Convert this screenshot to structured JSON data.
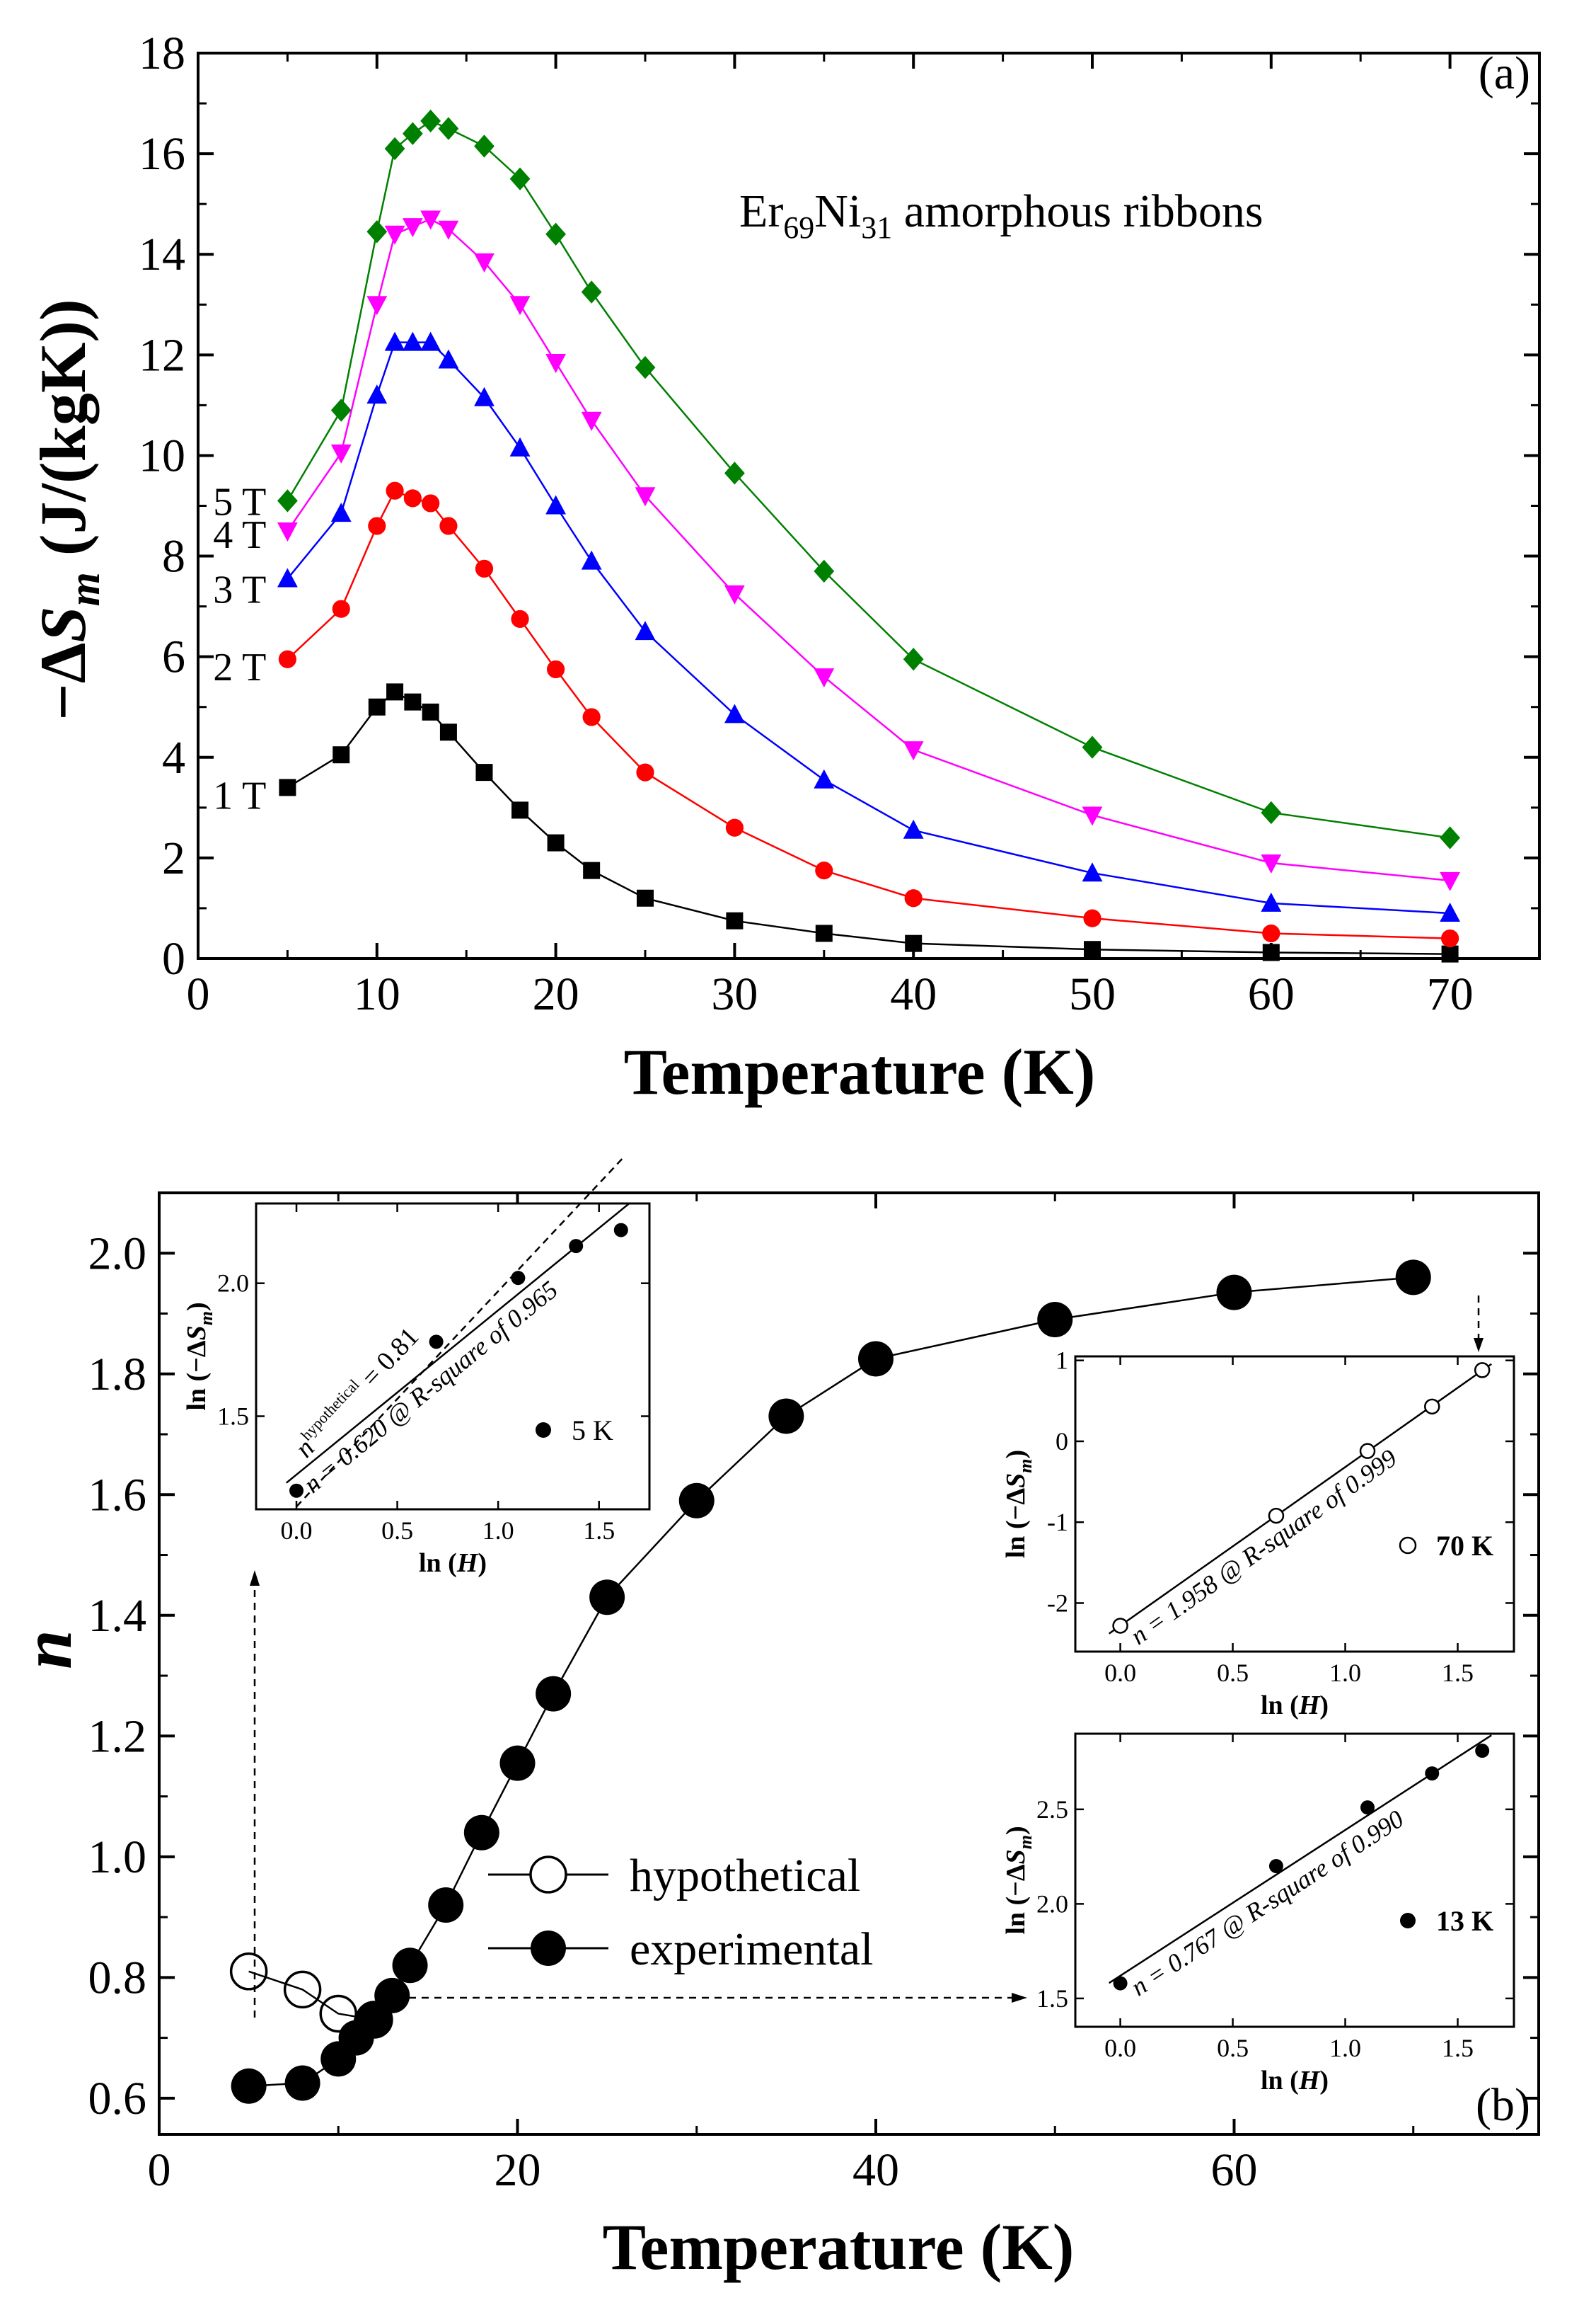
{
  "chart_data": [
    {
      "panel": "(a)",
      "type": "line",
      "title": "Er69Ni31 amorphous ribbons",
      "title_parts": {
        "base1": "Er",
        "sub1": "69",
        "base2": "Ni",
        "sub2": "31",
        "rest": " amorphous ribbons"
      },
      "xlabel": "Temperature (K)",
      "ylabel_parts": {
        "prefix": "−Δ",
        "s": "S",
        "sub": "m",
        "suffix": " (J/(kgK))"
      },
      "xlim": [
        0,
        75
      ],
      "ylim": [
        0,
        18
      ],
      "xticks": [
        "0",
        "10",
        "20",
        "30",
        "40",
        "50",
        "60",
        "70"
      ],
      "yticks": [
        "0",
        "2",
        "4",
        "6",
        "8",
        "10",
        "12",
        "14",
        "16",
        "18"
      ],
      "x": [
        5,
        8,
        10,
        11,
        12,
        13,
        14,
        16,
        18,
        20,
        22,
        25,
        30,
        35,
        40,
        50,
        60,
        70
      ],
      "series": [
        {
          "name": "1 T",
          "marker": "square",
          "color": "#000000",
          "values": [
            3.4,
            4.05,
            5.0,
            5.3,
            5.1,
            4.9,
            4.5,
            3.7,
            2.95,
            2.3,
            1.75,
            1.2,
            0.75,
            0.5,
            0.3,
            0.18,
            0.12,
            0.09
          ]
        },
        {
          "name": "2 T",
          "marker": "circle",
          "color": "#ff0000",
          "values": [
            5.95,
            6.95,
            8.6,
            9.3,
            9.15,
            9.05,
            8.6,
            7.75,
            6.75,
            5.75,
            4.8,
            3.7,
            2.6,
            1.75,
            1.2,
            0.8,
            0.5,
            0.4
          ]
        },
        {
          "name": "3 T",
          "marker": "triangle-up",
          "color": "#0000ff",
          "values": [
            7.55,
            8.85,
            11.2,
            12.25,
            12.25,
            12.25,
            11.9,
            11.15,
            10.15,
            9.0,
            7.9,
            6.5,
            4.85,
            3.55,
            2.55,
            1.7,
            1.1,
            0.9
          ]
        },
        {
          "name": "4 T",
          "marker": "triangle-down",
          "color": "#ff00ff",
          "values": [
            8.5,
            10.05,
            13.0,
            14.4,
            14.55,
            14.7,
            14.5,
            13.85,
            13.0,
            11.85,
            10.7,
            9.2,
            7.25,
            5.6,
            4.15,
            2.85,
            1.9,
            1.55
          ]
        },
        {
          "name": "5 T",
          "marker": "diamond",
          "color": "#008000",
          "values": [
            9.1,
            10.9,
            14.45,
            16.1,
            16.4,
            16.65,
            16.5,
            16.15,
            15.5,
            14.4,
            13.25,
            11.75,
            9.65,
            7.7,
            5.95,
            4.2,
            2.9,
            2.4
          ]
        }
      ]
    },
    {
      "panel": "(b)",
      "type": "scatter",
      "xlabel": "Temperature (K)",
      "ylabel": "n",
      "xlim": [
        0,
        77
      ],
      "ylim": [
        0.54,
        2.1
      ],
      "xticks": [
        "0",
        "20",
        "40",
        "60"
      ],
      "yticks": [
        "0.6",
        "0.8",
        "1.0",
        "1.2",
        "1.4",
        "1.6",
        "1.8",
        "2.0"
      ],
      "series": [
        {
          "name": "hypothetical",
          "marker": "open-circle",
          "x": [
            5,
            8,
            10,
            12
          ],
          "values": [
            0.81,
            0.78,
            0.74,
            0.73
          ]
        },
        {
          "name": "experimental",
          "marker": "filled-circle",
          "x": [
            5,
            8,
            10,
            11,
            12,
            13,
            14,
            16,
            18,
            20,
            22,
            25,
            30,
            35,
            40,
            50,
            60,
            70
          ],
          "values": [
            0.62,
            0.625,
            0.665,
            0.7,
            0.73,
            0.77,
            0.82,
            0.92,
            1.04,
            1.155,
            1.27,
            1.43,
            1.59,
            1.73,
            1.825,
            1.89,
            1.935,
            1.96
          ]
        }
      ],
      "insets": [
        {
          "label": "5 K",
          "marker": "filled-circle-small",
          "xlabel_parts": {
            "prefix": "ln (",
            "var": "H",
            "suffix": ")"
          },
          "ylabel_parts": {
            "prefix": "ln (−Δ",
            "s": "S",
            "sub": "m",
            "suffix": ")"
          },
          "xlim": [
            -0.2,
            1.75
          ],
          "ylim": [
            1.15,
            2.3
          ],
          "xticks": [
            "0.0",
            "0.5",
            "1.0",
            "1.5"
          ],
          "yticks": [
            "1.5",
            "2.0"
          ],
          "x": [
            0.0,
            0.693,
            1.099,
            1.386,
            1.609
          ],
          "values": [
            1.22,
            1.78,
            2.02,
            2.14,
            2.2
          ],
          "fit_text": "n = 0.620 @ R-square of 0.965",
          "hyp_text_parts": {
            "n": "n",
            "sup": "hypothetical",
            "eq": " = 0.81"
          }
        },
        {
          "label": "70 K",
          "marker": "open-circle-small",
          "xlabel_parts": {
            "prefix": "ln (",
            "var": "H",
            "suffix": ")"
          },
          "ylabel_parts": {
            "prefix": "ln (−Δ",
            "s": "S",
            "sub": "m",
            "suffix": ")"
          },
          "xlim": [
            -0.2,
            1.75
          ],
          "ylim": [
            -2.6,
            1.05
          ],
          "xticks": [
            "0.0",
            "0.5",
            "1.0",
            "1.5"
          ],
          "yticks": [
            "-2",
            "-1",
            "0",
            "1"
          ],
          "x": [
            0.0,
            0.693,
            1.099,
            1.386,
            1.609
          ],
          "values": [
            -2.28,
            -0.92,
            -0.12,
            0.43,
            0.88
          ],
          "fit_text": "n = 1.958 @ R-square of 0.999"
        },
        {
          "label": "13 K",
          "marker": "filled-circle-small",
          "xlabel_parts": {
            "prefix": "ln (",
            "var": "H",
            "suffix": ")"
          },
          "ylabel_parts": {
            "prefix": "ln (−Δ",
            "s": "S",
            "sub": "m",
            "suffix": ")"
          },
          "xlim": [
            -0.2,
            1.75
          ],
          "ylim": [
            1.35,
            2.9
          ],
          "xticks": [
            "0.0",
            "0.5",
            "1.0",
            "1.5"
          ],
          "yticks": [
            "1.5",
            "2.0",
            "2.5"
          ],
          "x": [
            0.0,
            0.693,
            1.099,
            1.386,
            1.609
          ],
          "values": [
            1.58,
            2.2,
            2.51,
            2.69,
            2.81
          ],
          "fit_text": "n = 0.767 @ R-square of 0.990"
        }
      ]
    }
  ]
}
